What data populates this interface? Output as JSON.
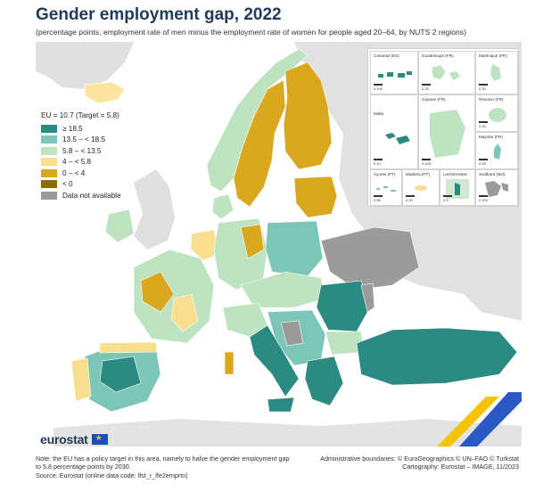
{
  "title": "Gender employment gap, 2022",
  "subtitle": "(percentage points, employment rate of men minus the employment rate of women for people aged 20–64, by NUTS 2 regions)",
  "legend": {
    "eu_label": "EU = 10.7 (Target = 5.8)",
    "classes": [
      {
        "label": "≥ 18.5",
        "color": "#2b8a82"
      },
      {
        "label": "13.5 – < 18.5",
        "color": "#7cc6b7"
      },
      {
        "label": "5.8 – < 13.5",
        "color": "#bde3c0"
      },
      {
        "label": "4 – < 5.8",
        "color": "#f7df8f"
      },
      {
        "label": "0 – < 4",
        "color": "#d9a81e"
      },
      {
        "label": "< 0",
        "color": "#8a6d00"
      },
      {
        "label": "Data not available",
        "color": "#9b9b9b"
      }
    ]
  },
  "insets": {
    "canarias": {
      "name": "Canarias (ES)",
      "scale": "0   100"
    },
    "guadeloupe": {
      "name": "Guadeloupe (FR)",
      "scale": "0   25"
    },
    "martinique": {
      "name": "Martinique (FR)",
      "scale": "0   20"
    },
    "reunion": {
      "name": "Réunion (FR)",
      "scale": "0   20"
    },
    "malta": {
      "name": "Malta",
      "scale": "0   10"
    },
    "guyane": {
      "name": "Guyane (FR)",
      "scale": "0   100"
    },
    "mayotte": {
      "name": "Mayotte (FR)",
      "scale": "0   15"
    },
    "acores": {
      "name": "Açores (PT)",
      "scale": "0   50"
    },
    "madeira": {
      "name": "Madeira (PT)",
      "scale": "0   20"
    },
    "liechtenstein": {
      "name": "Liechtenstein",
      "scale": "0   5"
    },
    "svalbard": {
      "name": "Svalbard (NO)",
      "scale": "0   100"
    }
  },
  "logo_text": "eurostat",
  "note": "Note: the EU has a policy target in this area, namely to halve the gender employment gap to 5.8 percentage points by 2030.",
  "source": "Source: Eurostat (online data code: lfst_r_lfe2emprtn)",
  "credits": {
    "boundaries": "Administrative boundaries: © EuroGeographics © UN–FAO © Turkstat",
    "cartography": "Cartography: Eurostat – IMAGE, 11/2023"
  }
}
